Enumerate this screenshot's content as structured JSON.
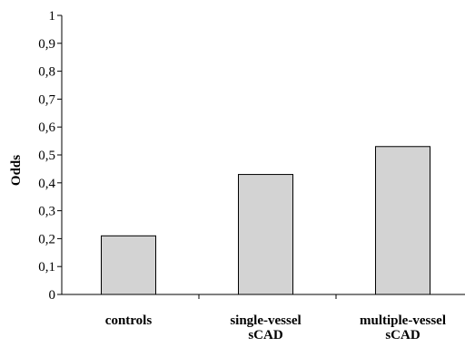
{
  "chart_data": {
    "type": "bar",
    "title": "",
    "xlabel": "",
    "ylabel": "Odds",
    "categories": [
      [
        "controls"
      ],
      [
        "single-vessel",
        "sCAD"
      ],
      [
        "multiple-vessel",
        "sCAD"
      ]
    ],
    "values": [
      0.21,
      0.43,
      0.53
    ],
    "ylim": [
      0,
      1
    ],
    "yticks": [
      "0",
      "0,1",
      "0,2",
      "0,3",
      "0,4",
      "0,5",
      "0,6",
      "0,7",
      "0,8",
      "0,9",
      "1"
    ],
    "grid": false,
    "bar_color": "#d3d3d3"
  }
}
